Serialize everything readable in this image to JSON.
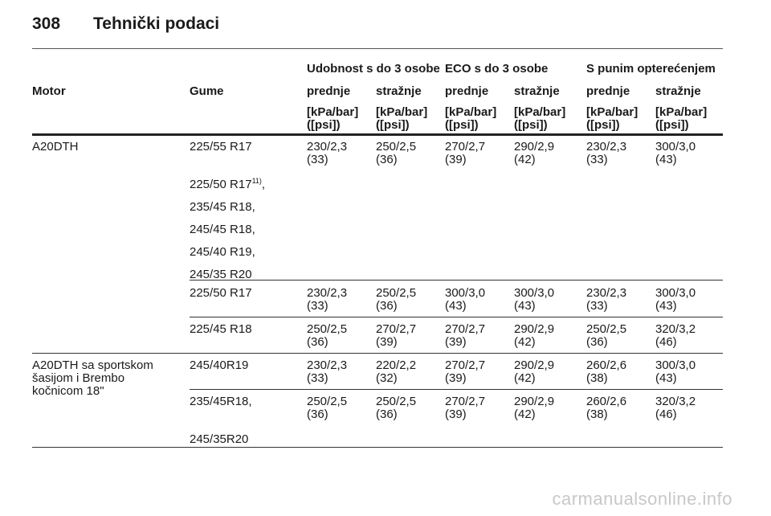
{
  "page": {
    "number": "308",
    "title": "Tehnički podaci"
  },
  "table": {
    "groups": [
      "Udobnost s do 3 osobe",
      "ECO s do 3 osobe",
      "S punim opterećenjem"
    ],
    "motor_header": "Motor",
    "tires_header": "Gume",
    "axles": [
      "prednje",
      "stražnje",
      "prednje",
      "stražnje",
      "prednje",
      "stražnje"
    ],
    "unit_top": "[kPa/bar]",
    "unit_bottom": "([psi])",
    "motor1": "A20DTH",
    "motor2": [
      "A20DTH sa sportskom",
      "šasijom i Brembo",
      "kočnicom 18\""
    ],
    "rows": [
      {
        "tire": "225/55 R17",
        "vals": [
          [
            "230/2,3",
            "(33)"
          ],
          [
            "250/2,5",
            "(36)"
          ],
          [
            "270/2,7",
            "(39)"
          ],
          [
            "290/2,9",
            "(42)"
          ],
          [
            "230/2,3",
            "(33)"
          ],
          [
            "300/3,0",
            "(43)"
          ]
        ]
      },
      {
        "tire_list": [
          "225/50 R17",
          "235/45 R18,",
          "245/45 R18,",
          "245/40 R19,",
          "245/35 R20"
        ],
        "footnote": "11)"
      },
      {
        "tire": "225/50 R17",
        "vals": [
          [
            "230/2,3",
            "(33)"
          ],
          [
            "250/2,5",
            "(36)"
          ],
          [
            "300/3,0",
            "(43)"
          ],
          [
            "300/3,0",
            "(43)"
          ],
          [
            "230/2,3",
            "(33)"
          ],
          [
            "300/3,0",
            "(43)"
          ]
        ]
      },
      {
        "tire": "225/45 R18",
        "vals": [
          [
            "250/2,5",
            "(36)"
          ],
          [
            "270/2,7",
            "(39)"
          ],
          [
            "270/2,7",
            "(39)"
          ],
          [
            "290/2,9",
            "(42)"
          ],
          [
            "250/2,5",
            "(36)"
          ],
          [
            "320/3,2",
            "(46)"
          ]
        ]
      },
      {
        "tire": "245/40R19",
        "vals": [
          [
            "230/2,3",
            "(33)"
          ],
          [
            "220/2,2",
            "(32)"
          ],
          [
            "270/2,7",
            "(39)"
          ],
          [
            "290/2,9",
            "(42)"
          ],
          [
            "260/2,6",
            "(38)"
          ],
          [
            "300/3,0",
            "(43)"
          ]
        ]
      },
      {
        "tire_list": [
          "235/45R18,",
          "245/35R20"
        ],
        "vals": [
          [
            "250/2,5",
            "(36)"
          ],
          [
            "250/2,5",
            "(36)"
          ],
          [
            "270/2,7",
            "(39)"
          ],
          [
            "290/2,9",
            "(42)"
          ],
          [
            "260/2,6",
            "(38)"
          ],
          [
            "320/3,2",
            "(46)"
          ]
        ]
      }
    ]
  },
  "watermark": "carmanualsonline.info"
}
